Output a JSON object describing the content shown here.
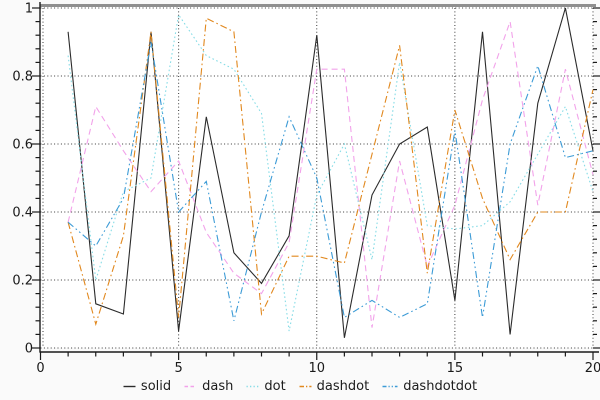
{
  "figure": {
    "background": "#fafafa",
    "plot_background": "#ffffff",
    "grid_color": "#3a3a3a",
    "spine_color": "#1a1a1a",
    "top_spine_color": "#8f8f8f",
    "tick_label_color": "#1a1a1a"
  },
  "chart_data": {
    "type": "line",
    "title": "",
    "xlabel": "",
    "ylabel": "",
    "xlim": [
      0,
      20
    ],
    "ylim": [
      0,
      1
    ],
    "x_tick_labels": [
      "0",
      "5",
      "10",
      "15",
      "20"
    ],
    "x_major_ticks": [
      0,
      5,
      10,
      15,
      20
    ],
    "x_minor_step": 1,
    "y_tick_labels": [
      "0",
      "0.2",
      "0.4",
      "0.6",
      "0.8",
      "1"
    ],
    "y_major_ticks": [
      0,
      0.2,
      0.4,
      0.6,
      0.8,
      1
    ],
    "y_minor_step": 0.04,
    "grid": "dotted-at-major-ticks",
    "legend_position": "bottom-center",
    "x": [
      1,
      2,
      3,
      4,
      5,
      6,
      7,
      8,
      9,
      10,
      11,
      12,
      13,
      14,
      15,
      16,
      17,
      18,
      19,
      20
    ],
    "series": [
      {
        "name": "solid",
        "color": "#2b2b2b",
        "style": "solid",
        "values": [
          0.93,
          0.13,
          0.1,
          0.93,
          0.05,
          0.68,
          0.28,
          0.19,
          0.33,
          0.92,
          0.03,
          0.45,
          0.6,
          0.65,
          0.14,
          0.93,
          0.04,
          0.72,
          1.0,
          0.58
        ]
      },
      {
        "name": "dash",
        "color": "#f2a2ea",
        "style": "dash",
        "values": [
          0.37,
          0.71,
          0.58,
          0.46,
          0.55,
          0.34,
          0.22,
          0.16,
          0.31,
          0.82,
          0.82,
          0.06,
          0.55,
          0.24,
          0.42,
          0.73,
          0.96,
          0.42,
          0.82,
          0.51
        ]
      },
      {
        "name": "dot",
        "color": "#86dce6",
        "style": "dot",
        "values": [
          0.86,
          0.2,
          0.46,
          0.5,
          0.98,
          0.86,
          0.82,
          0.69,
          0.05,
          0.45,
          0.6,
          0.26,
          0.84,
          0.36,
          0.35,
          0.36,
          0.43,
          0.57,
          0.71,
          0.46
        ]
      },
      {
        "name": "dashdot",
        "color": "#e1881e",
        "style": "dashdot",
        "values": [
          0.37,
          0.07,
          0.33,
          0.93,
          0.09,
          0.97,
          0.93,
          0.1,
          0.27,
          0.27,
          0.25,
          0.57,
          0.89,
          0.22,
          0.7,
          0.44,
          0.26,
          0.4,
          0.4,
          0.76
        ]
      },
      {
        "name": "dashdotdot",
        "color": "#3c9bd6",
        "style": "dashdotdot",
        "values": [
          0.37,
          0.3,
          0.44,
          0.9,
          0.4,
          0.49,
          0.08,
          0.4,
          0.68,
          0.5,
          0.09,
          0.14,
          0.09,
          0.13,
          0.64,
          0.09,
          0.6,
          0.83,
          0.56,
          0.58
        ]
      }
    ]
  }
}
